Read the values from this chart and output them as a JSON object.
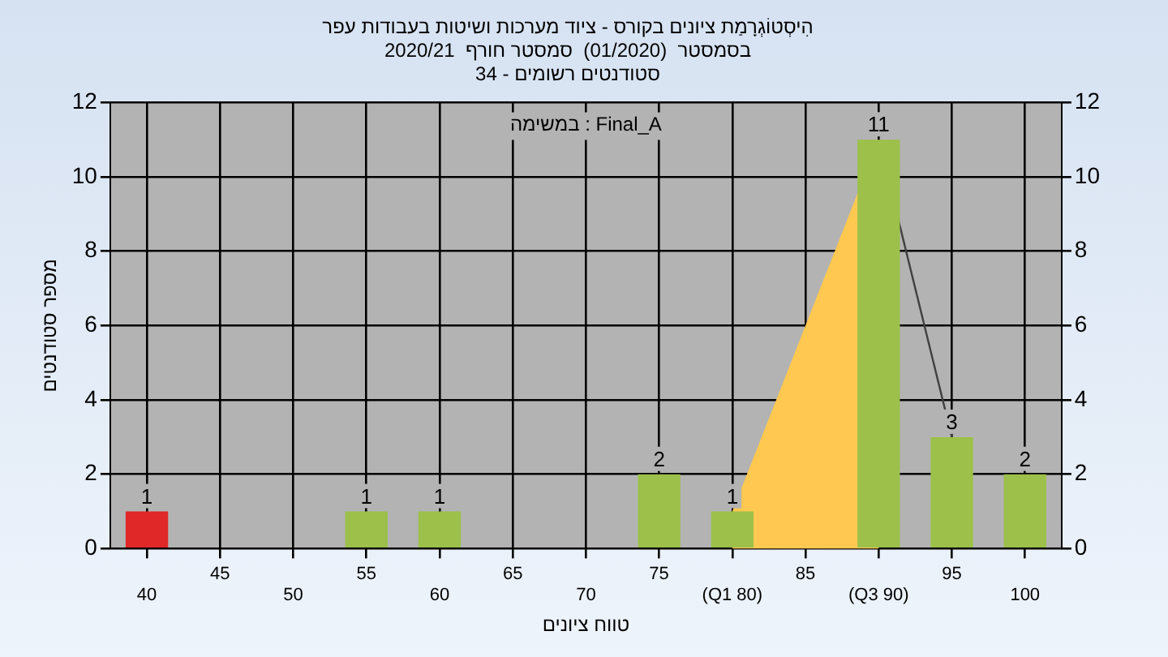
{
  "chart_data": {
    "type": "bar",
    "title": "הִיסְטוֹגְרָמַת ציונים בקורס - ציוד מערכות ושיטות בעבודות עפר",
    "subtitle": "בסמסטר  (01/2020)  סמסטר חורף  2020/21\nסטודנטים רשומים - 34",
    "xlabel": "טווח ציונים",
    "ylabel": "מספר סטודנטים",
    "annotations": [
      "במשימה : Final_A"
    ],
    "categories": [
      "40",
      "45",
      "50",
      "55",
      "60",
      "65",
      "70",
      "75",
      "(Q1 80)",
      "85",
      "(Q3 90)",
      "95",
      "100"
    ],
    "series": [
      {
        "type": "area",
        "color": "#ffc850",
        "values": [
          null,
          null,
          null,
          null,
          null,
          null,
          null,
          null,
          1,
          null,
          11,
          null,
          null
        ]
      },
      {
        "type": "line",
        "color": "#404040",
        "values": [
          null,
          null,
          null,
          null,
          null,
          null,
          null,
          null,
          null,
          null,
          11,
          3,
          null
        ]
      },
      {
        "colors": [
          "#e02828",
          "#9cc04a",
          "#9cc04a",
          "#9cc04a",
          "#9cc04a",
          "#9cc04a",
          "#9cc04a",
          "#9cc04a",
          "#9cc04a",
          "#9cc04a",
          "#9cc04a",
          "#9cc04a",
          "#9cc04a"
        ],
        "values": [
          1,
          0,
          0,
          1,
          1,
          0,
          0,
          2,
          1,
          0,
          11,
          3,
          2
        ],
        "value_labels": [
          "1",
          null,
          null,
          "1",
          "1",
          null,
          null,
          "2",
          "1",
          null,
          "11",
          "3",
          "2"
        ]
      }
    ],
    "ylim": [
      0,
      12
    ],
    "yticks": [
      0,
      2,
      4,
      6,
      8,
      10,
      12
    ],
    "y2lim": [
      0,
      12
    ],
    "y2ticks": [
      0,
      2,
      4,
      6,
      8,
      10,
      12
    ],
    "grid": true,
    "legend": false
  }
}
